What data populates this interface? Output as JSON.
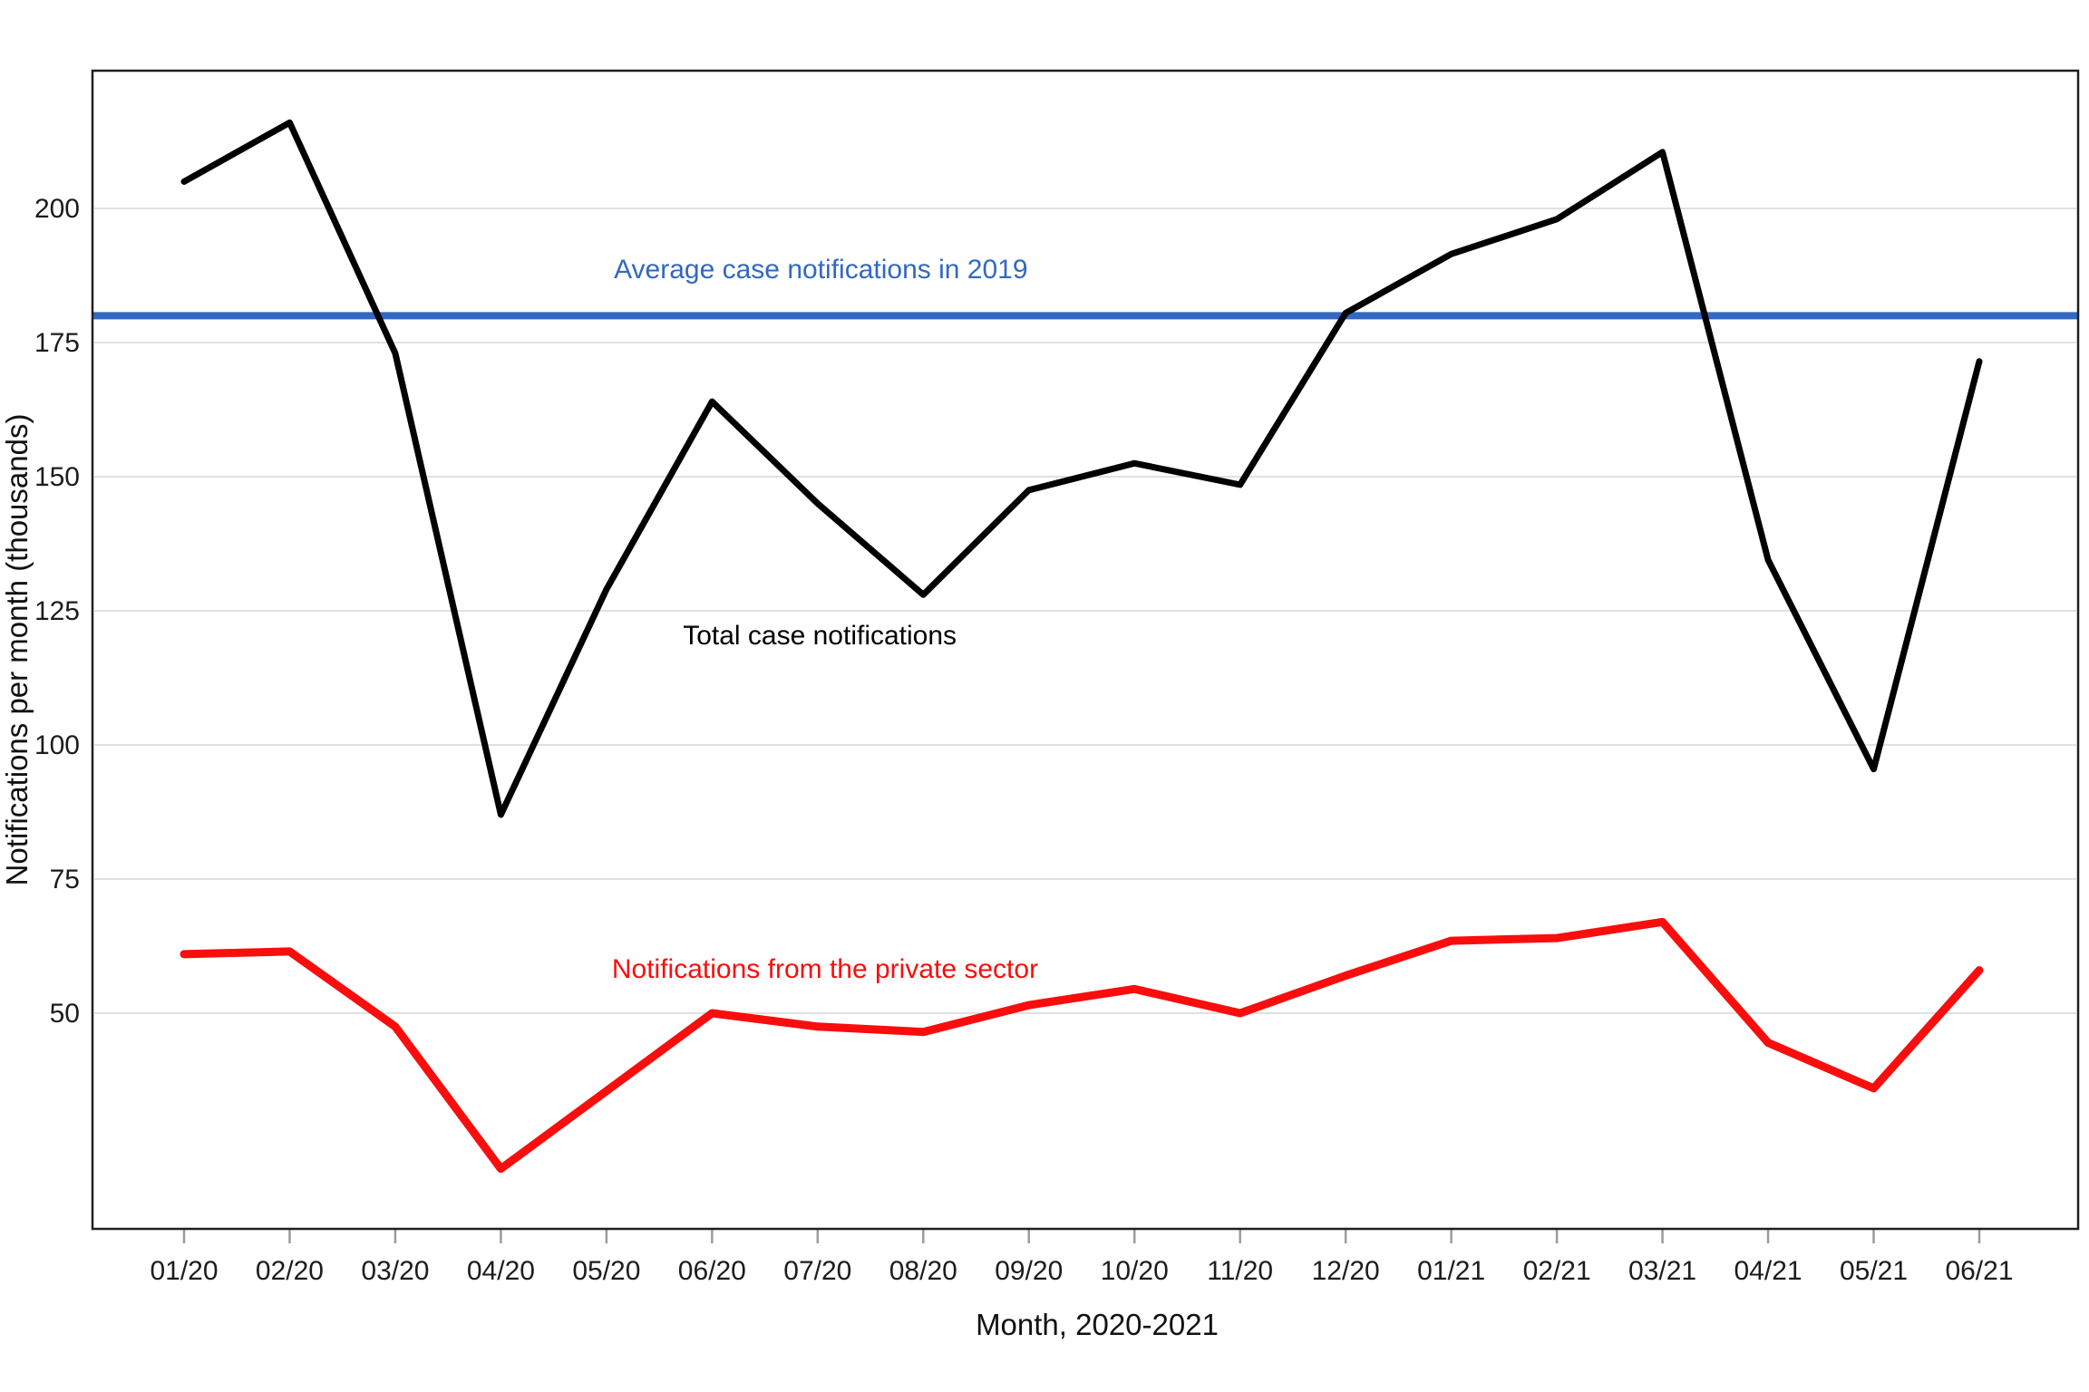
{
  "chart_data": {
    "type": "line",
    "title": "",
    "xlabel": "Month, 2020-2021",
    "ylabel": "Notifications per month (thousands)",
    "categories": [
      "01/20",
      "02/20",
      "03/20",
      "04/20",
      "05/20",
      "06/20",
      "07/20",
      "08/20",
      "09/20",
      "10/20",
      "11/20",
      "12/20",
      "01/21",
      "02/21",
      "03/21",
      "04/21",
      "05/21",
      "06/21"
    ],
    "yticks": [
      50,
      75,
      100,
      125,
      150,
      175,
      200
    ],
    "ylim": [
      10,
      226
    ],
    "grid": "horizontal-only",
    "legend": "inline-annotations",
    "colors": {
      "total_series": "#000000",
      "private_series": "#fa0d0d",
      "reference_line": "#3268c2",
      "gridline": "#d6d6d6",
      "plot_border": "#1f1f1f",
      "tick_mark": "#9c9c9c",
      "tick_label": "#1c1c1c",
      "axis_title": "#111111"
    },
    "series": [
      {
        "name": "Total case notifications",
        "color": "#000000",
        "values": [
          205,
          216,
          173,
          87,
          129,
          164,
          145,
          128,
          147.5,
          152.5,
          148.5,
          180.5,
          191.5,
          198,
          210.5,
          134.5,
          95.5,
          171.5
        ]
      },
      {
        "name": "Notifications from the private sector",
        "color": "#fa0d0d",
        "values": [
          61,
          61.5,
          47.5,
          21,
          35.5,
          50,
          47.5,
          46.5,
          51.5,
          54.5,
          50,
          57,
          63.5,
          64,
          67,
          44.5,
          36,
          58
        ]
      }
    ],
    "reference_line": {
      "label": "Average case notifications in 2019",
      "value": 180,
      "color": "#3268c2"
    },
    "annotations": [
      {
        "text": "Average case notifications in 2019",
        "color": "#3268c2",
        "x_index": 6.03,
        "y_value": 188.7
      },
      {
        "text": "Total case notifications",
        "color": "#000000",
        "x_index": 6.02,
        "y_value": 120.4
      },
      {
        "text": "Notifications from the private sector",
        "color": "#fa0d0d",
        "x_index": 6.07,
        "y_value": 58.3
      }
    ]
  }
}
